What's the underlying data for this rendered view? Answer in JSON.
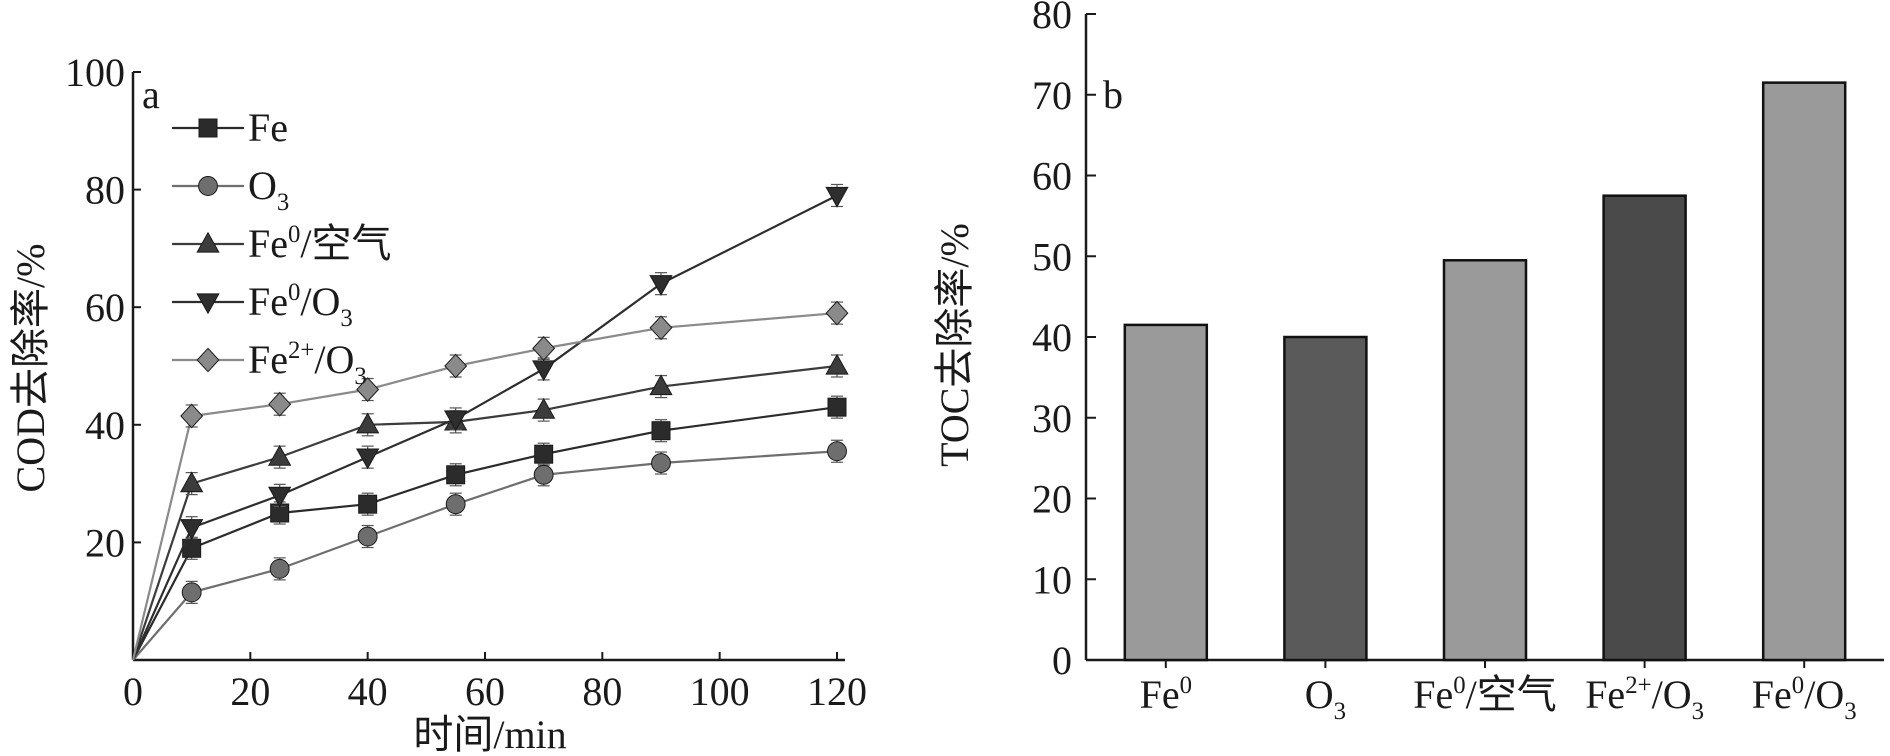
{
  "chart_data": [
    {
      "panel_label": "a",
      "type": "line",
      "ylabel": "COD去除率/%",
      "xlabel": "时间/min",
      "xlim": [
        0,
        120
      ],
      "ylim": [
        0,
        100
      ],
      "xticks": [
        "0",
        "20",
        "40",
        "60",
        "80",
        "100",
        "120"
      ],
      "yticks": [
        "20",
        "40",
        "60",
        "80",
        "100"
      ],
      "legend_placement": "top-left",
      "x": [
        0,
        10,
        25,
        40,
        55,
        70,
        90,
        120
      ],
      "series": [
        {
          "name": "Fe",
          "marker": "square",
          "color": "#2b2b2b",
          "values": [
            0,
            19,
            25,
            26.5,
            31.5,
            35,
            39,
            43
          ]
        },
        {
          "name": "O3",
          "marker": "circle",
          "color": "#6e6e6e",
          "values": [
            0,
            11.5,
            15.5,
            21,
            26.5,
            31.5,
            33.5,
            35.5
          ]
        },
        {
          "name": "Fe0/空气",
          "marker": "triangle-up",
          "color": "#3c3c3c",
          "values": [
            0,
            30,
            34.5,
            40,
            40.5,
            42.5,
            46.5,
            50
          ]
        },
        {
          "name": "Fe0/O3",
          "marker": "triangle-down",
          "color": "#2e2e2e",
          "values": [
            0,
            22.5,
            28,
            34.5,
            41,
            49.5,
            64,
            79
          ]
        },
        {
          "name": "Fe2+/O3",
          "marker": "diamond",
          "color": "#8a8a8a",
          "values": [
            0,
            41.5,
            43.5,
            46,
            50,
            53,
            56.5,
            59
          ]
        }
      ]
    },
    {
      "panel_label": "b",
      "type": "bar",
      "ylabel": "TOC去除率/%",
      "ylim": [
        0,
        80
      ],
      "yticks": [
        "0",
        "10",
        "20",
        "30",
        "40",
        "50",
        "60",
        "70",
        "80"
      ],
      "categories": [
        "Fe0",
        "O3",
        "Fe0/空气",
        "Fe2+/O3",
        "Fe0/O3"
      ],
      "values": [
        41.5,
        40,
        49.5,
        57.5,
        71.5
      ],
      "bar_colors": [
        "#9a9a9a",
        "#5a5a5a",
        "#9a9a9a",
        "#4a4a4a",
        "#9a9a9a"
      ]
    }
  ]
}
